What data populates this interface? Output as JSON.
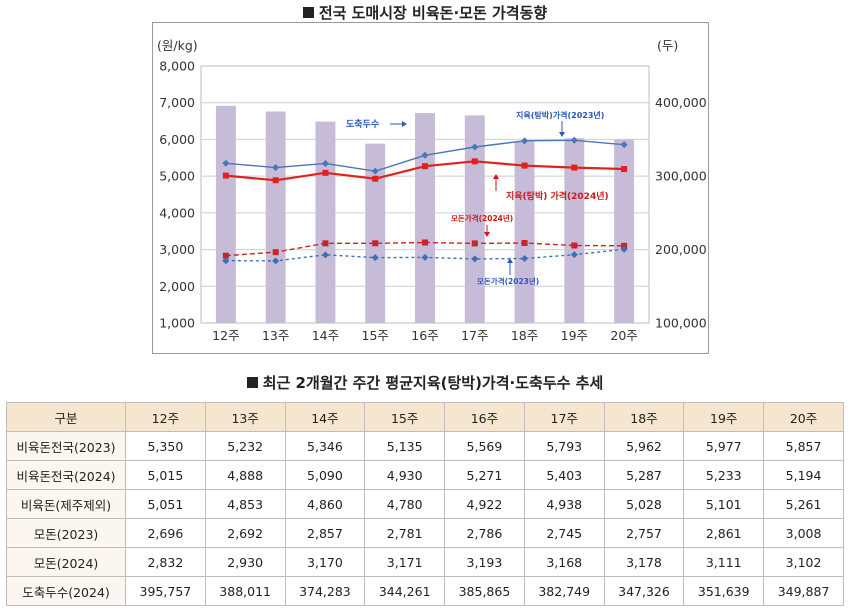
{
  "page": {
    "chart_title": "전국 도매시장 비육돈·모돈 가격동향",
    "table_title": "최근 2개월간 주간 평균지육(탕박)가격·도축두수 추세"
  },
  "colors": {
    "bar": "#c6bcd8",
    "meat2023": "#4a77b7",
    "meat2024": "#e0221f",
    "sow2024": "#c8242a",
    "sow2023": "#3f6fb8",
    "grid": "#cfcfcf",
    "label_blue": "#2b58b8",
    "label_red": "#d01818"
  },
  "chart_data": {
    "type": "bar",
    "categories": [
      "12주",
      "13주",
      "14주",
      "15주",
      "16주",
      "17주",
      "18주",
      "19주",
      "20주"
    ],
    "left_axis": {
      "unit": "(원/kg)",
      "ylim": [
        1000,
        8000
      ],
      "ticks": [
        "1,000",
        "2,000",
        "3,000",
        "4,000",
        "5,000",
        "6,000",
        "7,000",
        "8,000"
      ]
    },
    "right_axis": {
      "unit": "(두)",
      "ylim": [
        100000,
        450000
      ],
      "ticks": [
        "100,000",
        "200,000",
        "300,000",
        "400,000"
      ]
    },
    "series": [
      {
        "key": "slaughter",
        "name": "도축두수",
        "type": "bar",
        "axis": "right",
        "colorKey": "bar",
        "values": [
          395757,
          388011,
          374283,
          344261,
          385865,
          382749,
          347326,
          351639,
          349887
        ]
      },
      {
        "key": "meat2023",
        "name": "지육(탕박)가격(2023년)",
        "type": "line",
        "axis": "left",
        "colorKey": "meat2023",
        "dash": false,
        "marker": "diamond",
        "values": [
          5350,
          5232,
          5346,
          5135,
          5569,
          5793,
          5962,
          5977,
          5857
        ]
      },
      {
        "key": "meat2024",
        "name": "지육(탕박) 가격(2024년)",
        "type": "line",
        "axis": "left",
        "colorKey": "meat2024",
        "dash": false,
        "marker": "square",
        "values": [
          5015,
          4888,
          5090,
          4930,
          5271,
          5403,
          5287,
          5233,
          5194
        ]
      },
      {
        "key": "sow2024",
        "name": "모돈가격(2024년)",
        "type": "line",
        "axis": "left",
        "colorKey": "sow2024",
        "dash": true,
        "marker": "square",
        "values": [
          2832,
          2930,
          3170,
          3171,
          3193,
          3168,
          3178,
          3111,
          3102
        ]
      },
      {
        "key": "sow2023",
        "name": "모돈가격(2023년)",
        "type": "line",
        "axis": "left",
        "colorKey": "sow2023",
        "dash": true,
        "marker": "diamond",
        "values": [
          2696,
          2692,
          2857,
          2781,
          2786,
          2745,
          2757,
          2861,
          3008
        ]
      }
    ],
    "grid": true
  },
  "table": {
    "headers": [
      "구분",
      "12주",
      "13주",
      "14주",
      "15주",
      "16주",
      "17주",
      "18주",
      "19주",
      "20주"
    ],
    "rows": [
      {
        "label": "비육돈전국(2023)",
        "values": [
          "5,350",
          "5,232",
          "5,346",
          "5,135",
          "5,569",
          "5,793",
          "5,962",
          "5,977",
          "5,857"
        ]
      },
      {
        "label": "비육돈전국(2024)",
        "values": [
          "5,015",
          "4,888",
          "5,090",
          "4,930",
          "5,271",
          "5,403",
          "5,287",
          "5,233",
          "5,194"
        ]
      },
      {
        "label": "비육돈(제주제외)",
        "values": [
          "5,051",
          "4,853",
          "4,860",
          "4,780",
          "4,922",
          "4,938",
          "5,028",
          "5,101",
          "5,261"
        ]
      },
      {
        "label": "모돈(2023)",
        "values": [
          "2,696",
          "2,692",
          "2,857",
          "2,781",
          "2,786",
          "2,745",
          "2,757",
          "2,861",
          "3,008"
        ]
      },
      {
        "label": "모돈(2024)",
        "values": [
          "2,832",
          "2,930",
          "3,170",
          "3,171",
          "3,193",
          "3,168",
          "3,178",
          "3,111",
          "3,102"
        ]
      },
      {
        "label": "도축두수(2024)",
        "values": [
          "395,757",
          "388,011",
          "374,283",
          "344,261",
          "385,865",
          "382,749",
          "347,326",
          "351,639",
          "349,887"
        ]
      }
    ]
  }
}
